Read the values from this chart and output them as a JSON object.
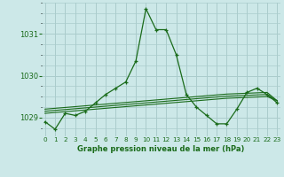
{
  "title": "Graphe pression niveau de la mer (hPa)",
  "background_color": "#cce8e8",
  "grid_color": "#aacccc",
  "line_color": "#1a6b1a",
  "marker_color": "#1a6b1a",
  "x_labels": [
    "0",
    "1",
    "2",
    "3",
    "4",
    "5",
    "6",
    "7",
    "8",
    "9",
    "10",
    "11",
    "12",
    "13",
    "14",
    "15",
    "16",
    "17",
    "18",
    "19",
    "20",
    "21",
    "22",
    "23"
  ],
  "y_ticks": [
    1029,
    1030,
    1031
  ],
  "ylim": [
    1028.55,
    1031.75
  ],
  "xlim": [
    -0.3,
    23.3
  ],
  "main_series": [
    1028.9,
    1028.72,
    1029.1,
    1029.05,
    1029.15,
    1029.35,
    1029.55,
    1029.7,
    1029.85,
    1030.35,
    1031.6,
    1031.1,
    1031.1,
    1030.5,
    1029.55,
    1029.25,
    1029.05,
    1028.85,
    1028.85,
    1029.2,
    1029.6,
    1029.7,
    1029.55,
    1029.35
  ],
  "flat_lines": [
    [
      1029.1,
      1029.12,
      1029.14,
      1029.16,
      1029.18,
      1029.2,
      1029.22,
      1029.24,
      1029.26,
      1029.28,
      1029.3,
      1029.32,
      1029.34,
      1029.36,
      1029.38,
      1029.4,
      1029.42,
      1029.44,
      1029.46,
      1029.47,
      1029.48,
      1029.49,
      1029.5,
      1029.4
    ],
    [
      1029.15,
      1029.17,
      1029.19,
      1029.21,
      1029.23,
      1029.25,
      1029.27,
      1029.29,
      1029.31,
      1029.33,
      1029.35,
      1029.37,
      1029.39,
      1029.41,
      1029.43,
      1029.45,
      1029.47,
      1029.49,
      1029.51,
      1029.52,
      1029.53,
      1029.54,
      1029.55,
      1029.4
    ],
    [
      1029.2,
      1029.22,
      1029.24,
      1029.26,
      1029.28,
      1029.3,
      1029.32,
      1029.34,
      1029.36,
      1029.38,
      1029.4,
      1029.42,
      1029.44,
      1029.46,
      1029.48,
      1029.5,
      1029.52,
      1029.54,
      1029.56,
      1029.57,
      1029.58,
      1029.59,
      1029.6,
      1029.4
    ]
  ]
}
